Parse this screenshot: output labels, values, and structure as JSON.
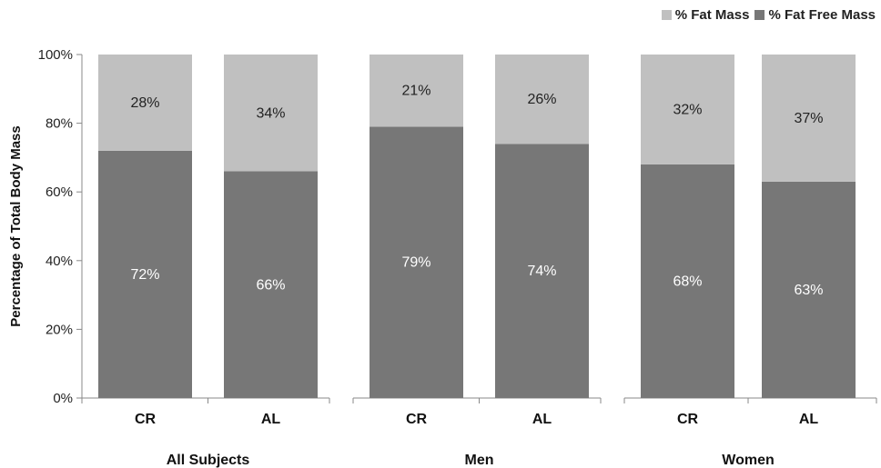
{
  "chart_data": {
    "type": "bar",
    "stacked": true,
    "ylabel": "Percentage of Total Body Mass",
    "ylim": [
      0,
      100
    ],
    "yticks": [
      "0%",
      "20%",
      "40%",
      "60%",
      "80%",
      "100%"
    ],
    "groups": [
      {
        "name": "All Subjects",
        "bars": [
          {
            "label": "CR",
            "fat_free": 72,
            "fat": 28
          },
          {
            "label": "AL",
            "fat_free": 66,
            "fat": 34
          }
        ]
      },
      {
        "name": "Men",
        "bars": [
          {
            "label": "CR",
            "fat_free": 79,
            "fat": 21
          },
          {
            "label": "AL",
            "fat_free": 74,
            "fat": 26
          }
        ]
      },
      {
        "name": "Women",
        "bars": [
          {
            "label": "CR",
            "fat_free": 68,
            "fat": 32
          },
          {
            "label": "AL",
            "fat_free": 63,
            "fat": 37
          }
        ]
      }
    ],
    "series": [
      {
        "key": "fat",
        "name": "% Fat Mass",
        "color": "#c0c0c0"
      },
      {
        "key": "fat_free",
        "name": "% Fat Free Mass",
        "color": "#777777"
      }
    ],
    "legend_position": "top-right",
    "grid": false
  }
}
